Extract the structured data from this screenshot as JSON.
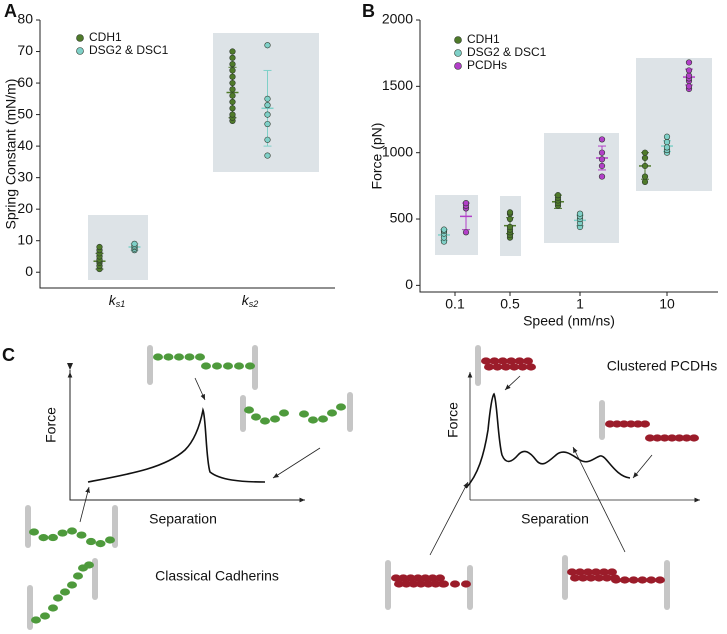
{
  "panels": [
    "A",
    "B",
    "C"
  ],
  "chart_data": [
    {
      "type": "strip",
      "ylabel": "Spring Constant (mN/m)",
      "categories": [
        "ks1",
        "ks2"
      ],
      "ylim": [
        -5,
        80
      ],
      "yticks": [
        0,
        10,
        20,
        30,
        40,
        50,
        60,
        70,
        80
      ],
      "series": [
        {
          "name": "CDH1",
          "color": "#4f7a2a",
          "values": [
            [
              1,
              2,
              3,
              3.5,
              4,
              5,
              6,
              7,
              8
            ],
            [
              48,
              49,
              50,
              52,
              54,
              56,
              58,
              60,
              62,
              64,
              66,
              68,
              70
            ]
          ],
          "means": [
            3.5,
            57
          ],
          "errors": [
            2.5,
            8
          ]
        },
        {
          "name": "DSG2 & DSC1",
          "color": "#7fd0c8",
          "values": [
            [
              7,
              7.5,
              8,
              8.5,
              9
            ],
            [
              37,
              42,
              47,
              50,
              53,
              55,
              72
            ]
          ],
          "means": [
            8,
            52
          ],
          "errors": [
            1,
            12
          ]
        }
      ]
    },
    {
      "type": "strip",
      "ylabel": "Force (pN)",
      "xlabel": "Speed (nm/ns)",
      "categories": [
        "0.1",
        "0.5",
        "1",
        "10"
      ],
      "ylim": [
        -50,
        2000
      ],
      "yticks": [
        0,
        500,
        1000,
        1500,
        2000
      ],
      "series": [
        {
          "name": "CDH1",
          "color": "#4f7a2a",
          "values": [
            null,
            [
              360,
              380,
              400,
              420,
              440,
              500,
              540,
              550
            ],
            [
              600,
              620,
              640,
              660,
              680
            ],
            [
              780,
              820,
              900,
              960,
              1000
            ]
          ],
          "means": [
            null,
            450,
            630,
            900
          ],
          "errors": [
            null,
            60,
            50,
            100
          ]
        },
        {
          "name": "DSG2 & DSC1",
          "color": "#7fd0c8",
          "values": [
            [
              330,
              360,
              390,
              410,
              420
            ],
            null,
            [
              440,
              470,
              500,
              520,
              540
            ],
            [
              1000,
              1020,
              1040,
              1080,
              1120
            ]
          ],
          "means": [
            380,
            null,
            490,
            1050
          ],
          "errors": [
            40,
            null,
            40,
            40
          ]
        },
        {
          "name": "PCDHs",
          "color": "#b23fc8",
          "values": [
            [
              400,
              580,
              600,
              620
            ],
            null,
            [
              820,
              900,
              950,
              1000,
              1100
            ],
            [
              1480,
              1500,
              1540,
              1560,
              1580,
              1620,
              1680
            ]
          ],
          "means": [
            520,
            null,
            960,
            1570
          ],
          "errors": [
            100,
            null,
            90,
            60
          ]
        }
      ]
    }
  ],
  "diagram": {
    "left": {
      "ylabel": "Force",
      "xlabel": "Separation",
      "caption": "Classical Cadherins"
    },
    "right": {
      "ylabel": "Force",
      "xlabel": "Separation",
      "caption": "Clustered PCDHs"
    }
  }
}
